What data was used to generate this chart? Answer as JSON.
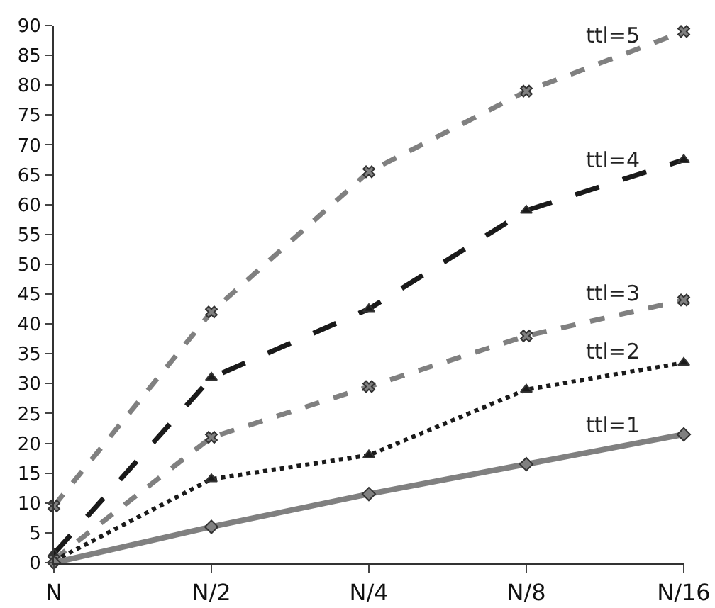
{
  "chart_data": {
    "type": "line",
    "categories": [
      "N",
      "N/2",
      "N/4",
      "N/8",
      "N/16"
    ],
    "series": [
      {
        "name": "ttl=5",
        "color": "#808080",
        "line_style": "dashed",
        "marker": "cross",
        "values": [
          9.5,
          42,
          65.5,
          79,
          89
        ]
      },
      {
        "name": "ttl=4",
        "color": "#1a1a1a",
        "line_style": "dashed",
        "marker": "triangle",
        "values": [
          1.5,
          31,
          42.5,
          59,
          67.5
        ]
      },
      {
        "name": "ttl=3",
        "color": "#808080",
        "line_style": "dashed",
        "marker": "cross",
        "values": [
          0.5,
          21,
          29.5,
          38,
          44
        ]
      },
      {
        "name": "ttl=2",
        "color": "#1a1a1a",
        "line_style": "dotted",
        "marker": "triangle",
        "values": [
          0.3,
          14,
          18,
          29,
          33.5
        ]
      },
      {
        "name": "ttl=1",
        "color": "#808080",
        "line_style": "solid",
        "marker": "diamond",
        "values": [
          0,
          6,
          11.5,
          16.5,
          21.5
        ]
      }
    ],
    "ylim": [
      0,
      90
    ],
    "yticks": [
      0,
      5,
      10,
      15,
      20,
      25,
      30,
      35,
      40,
      45,
      50,
      55,
      60,
      65,
      70,
      75,
      80,
      85,
      90
    ],
    "grid": false,
    "legend": false
  }
}
